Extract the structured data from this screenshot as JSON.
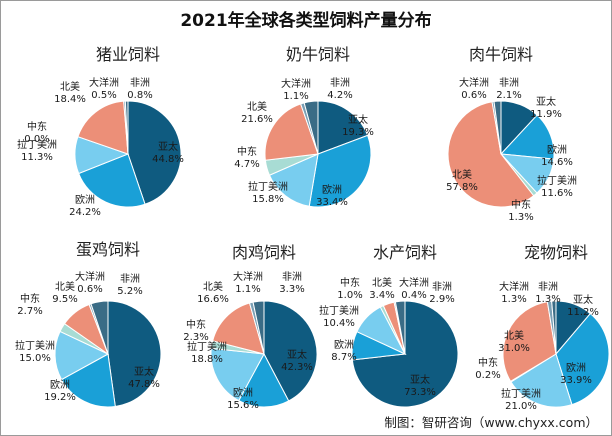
{
  "title": "2021年全球各类型饲料产量分布",
  "source": "制图：智研咨询（www.chyxx.com）",
  "colors": {
    "亚太": "#0f5b80",
    "欧洲": "#1aa0d7",
    "拉丁美洲": "#78cdef",
    "中东": "#a8dcd4",
    "北美": "#ec8f78",
    "大洋洲": "#7aa0b5",
    "非洲": "#3a6c86"
  },
  "chart_data": [
    {
      "type": "pie",
      "title": "猪业饲料",
      "categories": [
        "亚太",
        "欧洲",
        "拉丁美洲",
        "中东",
        "北美",
        "大洋洲",
        "非洲"
      ],
      "values": [
        44.8,
        24.2,
        11.3,
        0.0,
        18.4,
        0.5,
        0.8
      ],
      "labels": [
        "44.8%",
        "24.2%",
        "11.3%",
        "0.0%",
        "18.4%",
        "0.5%",
        "0.8%"
      ]
    },
    {
      "type": "pie",
      "title": "奶牛饲料",
      "categories": [
        "亚太",
        "欧洲",
        "拉丁美洲",
        "中东",
        "北美",
        "大洋洲",
        "非洲"
      ],
      "values": [
        19.3,
        33.4,
        15.8,
        4.7,
        21.6,
        1.1,
        4.2
      ],
      "labels": [
        "19.3%",
        "33.4%",
        "15.8%",
        "4.7%",
        "21.6%",
        "1.1%",
        "4.2%"
      ]
    },
    {
      "type": "pie",
      "title": "肉牛饲料",
      "categories": [
        "亚太",
        "欧洲",
        "拉丁美洲",
        "中东",
        "北美",
        "大洋洲",
        "非洲"
      ],
      "values": [
        11.9,
        14.6,
        11.6,
        1.3,
        57.8,
        0.6,
        2.1
      ],
      "labels": [
        "11.9%",
        "14.6%",
        "11.6%",
        "1.3%",
        "57.8%",
        "0.6%",
        "2.1%"
      ]
    },
    {
      "type": "pie",
      "title": "蛋鸡饲料",
      "categories": [
        "亚太",
        "欧洲",
        "拉丁美洲",
        "中东",
        "北美",
        "大洋洲",
        "非洲"
      ],
      "values": [
        47.8,
        19.2,
        15.0,
        2.7,
        9.5,
        0.6,
        5.2
      ],
      "labels": [
        "47.8%",
        "19.2%",
        "15.0%",
        "2.7%",
        "9.5%",
        "0.6%",
        "5.2%"
      ]
    },
    {
      "type": "pie",
      "title": "肉鸡饲料",
      "categories": [
        "亚太",
        "欧洲",
        "拉丁美洲",
        "中东",
        "北美",
        "大洋洲",
        "非洲"
      ],
      "values": [
        42.3,
        15.6,
        18.8,
        2.3,
        16.6,
        1.1,
        3.3
      ],
      "labels": [
        "42.3%",
        "15.6%",
        "18.8%",
        "2.3%",
        "16.6%",
        "1.1%",
        "3.3%"
      ]
    },
    {
      "type": "pie",
      "title": "水产饲料",
      "categories": [
        "亚太",
        "欧洲",
        "拉丁美洲",
        "中东",
        "北美",
        "大洋洲",
        "非洲"
      ],
      "values": [
        73.3,
        8.7,
        10.4,
        1.0,
        3.4,
        0.4,
        2.9
      ],
      "labels": [
        "73.3%",
        "8.7%",
        "10.4%",
        "1.0%",
        "3.4%",
        "0.4%",
        "2.9%"
      ]
    },
    {
      "type": "pie",
      "title": "宠物饲料",
      "categories": [
        "亚太",
        "欧洲",
        "拉丁美洲",
        "中东",
        "北美",
        "大洋洲",
        "非洲"
      ],
      "values": [
        11.2,
        33.9,
        21.0,
        0.2,
        31.0,
        1.3,
        1.3
      ],
      "labels": [
        "11.2%",
        "33.9%",
        "21.0%",
        "0.2%",
        "31.0%",
        "1.3%",
        "1.3%"
      ]
    }
  ]
}
